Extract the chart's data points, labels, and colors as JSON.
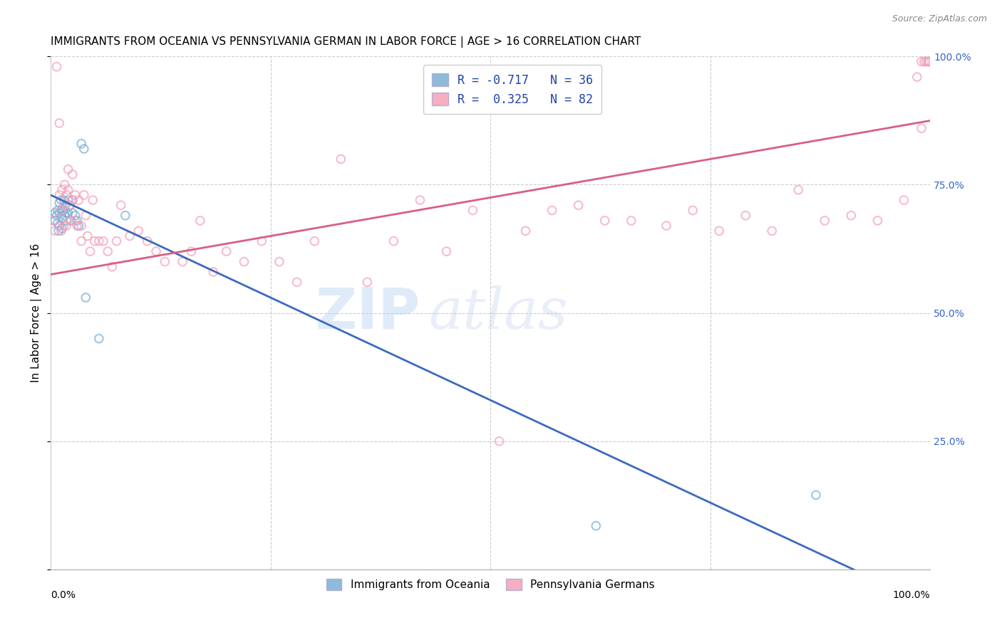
{
  "title": "IMMIGRANTS FROM OCEANIA VS PENNSYLVANIA GERMAN IN LABOR FORCE | AGE > 16 CORRELATION CHART",
  "source": "Source: ZipAtlas.com",
  "ylabel": "In Labor Force | Age > 16",
  "ylabel_right_labels": [
    "100.0%",
    "75.0%",
    "50.0%",
    "25.0%"
  ],
  "ylabel_right_positions": [
    1.0,
    0.75,
    0.5,
    0.25
  ],
  "xlim": [
    0,
    1
  ],
  "ylim": [
    0,
    1
  ],
  "watermark_zip": "ZIP",
  "watermark_atlas": "atlas",
  "legend_line1": "R = -0.717   N = 36",
  "legend_line2": "R =  0.325   N = 82",
  "blue_scatter_x": [
    0.005,
    0.005,
    0.007,
    0.008,
    0.008,
    0.009,
    0.01,
    0.01,
    0.01,
    0.012,
    0.012,
    0.013,
    0.013,
    0.014,
    0.015,
    0.015,
    0.016,
    0.017,
    0.018,
    0.018,
    0.02,
    0.02,
    0.022,
    0.023,
    0.025,
    0.025,
    0.028,
    0.03,
    0.032,
    0.035,
    0.038,
    0.04,
    0.055,
    0.085,
    0.62,
    0.87
  ],
  "blue_scatter_y": [
    0.695,
    0.68,
    0.69,
    0.7,
    0.675,
    0.66,
    0.715,
    0.695,
    0.67,
    0.72,
    0.7,
    0.685,
    0.665,
    0.7,
    0.72,
    0.7,
    0.69,
    0.71,
    0.695,
    0.68,
    0.72,
    0.695,
    0.71,
    0.68,
    0.72,
    0.695,
    0.69,
    0.68,
    0.67,
    0.83,
    0.82,
    0.53,
    0.45,
    0.69,
    0.085,
    0.145
  ],
  "pink_scatter_x": [
    0.003,
    0.005,
    0.007,
    0.01,
    0.01,
    0.012,
    0.012,
    0.013,
    0.015,
    0.015,
    0.016,
    0.018,
    0.018,
    0.02,
    0.02,
    0.022,
    0.022,
    0.025,
    0.025,
    0.028,
    0.028,
    0.03,
    0.032,
    0.035,
    0.035,
    0.038,
    0.04,
    0.042,
    0.045,
    0.048,
    0.05,
    0.055,
    0.06,
    0.065,
    0.07,
    0.075,
    0.08,
    0.09,
    0.1,
    0.11,
    0.12,
    0.13,
    0.15,
    0.16,
    0.17,
    0.185,
    0.2,
    0.22,
    0.24,
    0.26,
    0.28,
    0.3,
    0.33,
    0.36,
    0.39,
    0.42,
    0.45,
    0.48,
    0.51,
    0.54,
    0.57,
    0.6,
    0.63,
    0.66,
    0.7,
    0.73,
    0.76,
    0.79,
    0.82,
    0.85,
    0.88,
    0.91,
    0.94,
    0.97,
    0.985,
    0.99,
    0.99,
    0.993,
    0.995,
    0.997,
    0.998,
    0.999
  ],
  "pink_scatter_y": [
    0.68,
    0.66,
    0.98,
    0.87,
    0.73,
    0.7,
    0.66,
    0.74,
    0.71,
    0.67,
    0.75,
    0.73,
    0.67,
    0.78,
    0.74,
    0.71,
    0.68,
    0.77,
    0.72,
    0.68,
    0.73,
    0.67,
    0.72,
    0.67,
    0.64,
    0.73,
    0.69,
    0.65,
    0.62,
    0.72,
    0.64,
    0.64,
    0.64,
    0.62,
    0.59,
    0.64,
    0.71,
    0.65,
    0.66,
    0.64,
    0.62,
    0.6,
    0.6,
    0.62,
    0.68,
    0.58,
    0.62,
    0.6,
    0.64,
    0.6,
    0.56,
    0.64,
    0.8,
    0.56,
    0.64,
    0.72,
    0.62,
    0.7,
    0.25,
    0.66,
    0.7,
    0.71,
    0.68,
    0.68,
    0.67,
    0.7,
    0.66,
    0.69,
    0.66,
    0.74,
    0.68,
    0.69,
    0.68,
    0.72,
    0.96,
    0.86,
    0.99,
    0.99,
    0.99,
    0.99,
    0.99,
    0.99
  ],
  "blue_line_x": [
    0.0,
    1.0
  ],
  "blue_line_y": [
    0.73,
    -0.07
  ],
  "pink_line_x": [
    0.0,
    1.0
  ],
  "pink_line_y": [
    0.575,
    0.875
  ],
  "scatter_alpha": 0.7,
  "scatter_size": 70,
  "title_fontsize": 11,
  "axis_label_fontsize": 11,
  "background_color": "#ffffff",
  "grid_color": "#cccccc",
  "blue_color": "#7aaed6",
  "pink_color": "#f4a0b8",
  "blue_line_color": "#3b6bbf",
  "pink_line_color": "#d95f82"
}
